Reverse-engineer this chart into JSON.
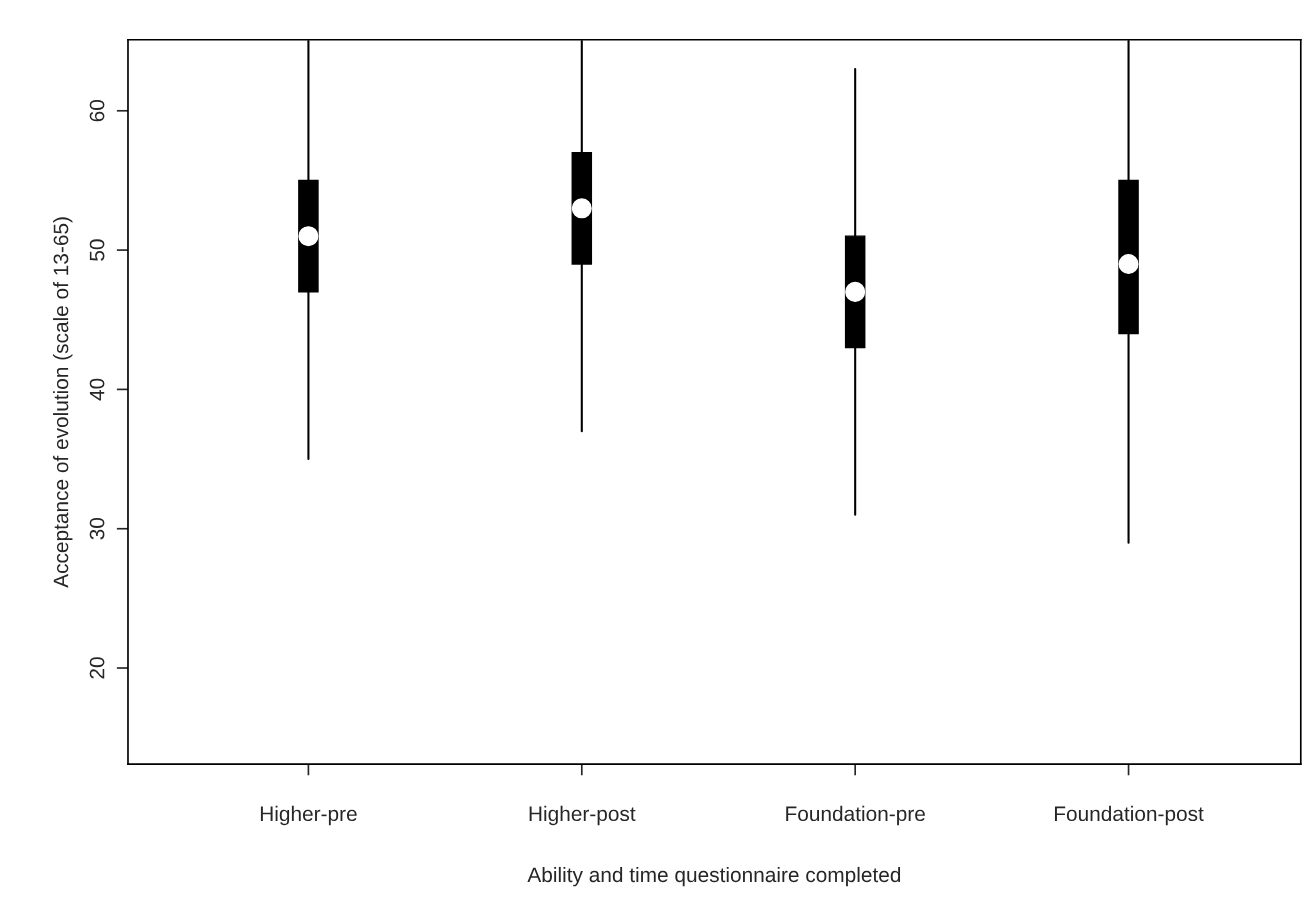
{
  "chart_data": {
    "type": "box",
    "xlabel": "Ability and time questionnaire completed",
    "ylabel": "Acceptance of evolution (scale of 13-65)",
    "categories": [
      "Higher-pre",
      "Higher-post",
      "Foundation-pre",
      "Foundation-post"
    ],
    "boxes": [
      {
        "low": 35,
        "q1": 47,
        "median": 51,
        "q3": 55,
        "high": 65
      },
      {
        "low": 37,
        "q1": 49,
        "median": 53,
        "q3": 57,
        "high": 65
      },
      {
        "low": 31,
        "q1": 43,
        "median": 47,
        "q3": 51,
        "high": 63
      },
      {
        "low": 29,
        "q1": 44,
        "median": 49,
        "q3": 55,
        "high": 65
      }
    ],
    "ylim": [
      13.1,
      65.1
    ],
    "yticks": [
      20,
      30,
      40,
      50,
      60
    ],
    "grid": false,
    "legend": false
  }
}
